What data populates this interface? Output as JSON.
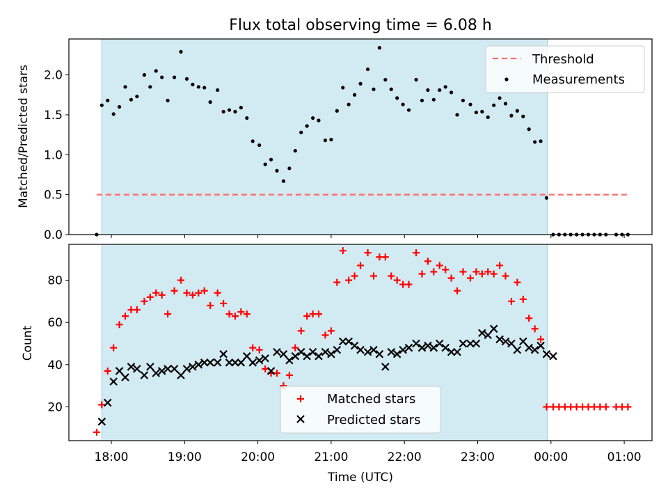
{
  "chart_data": [
    {
      "type": "scatter",
      "title": "Flux total observing time = 6.08 h",
      "xlabel": "",
      "ylabel": "Matched/Predicted stars",
      "xlim": [
        -0.3,
        7.4
      ],
      "ylim": [
        0.0,
        2.45
      ],
      "yticks": [
        0.0,
        0.5,
        1.0,
        1.5,
        2.0
      ],
      "ytick_labels": [
        "0.0",
        "0.5",
        "1.0",
        "1.5",
        "2.0"
      ],
      "xticks": [
        0,
        1,
        2,
        3,
        4,
        5,
        6,
        7
      ],
      "shaded_span": [
        -0.13,
        5.95
      ],
      "shade_color": "#add8e6",
      "legend": {
        "position": "top-right",
        "entries": [
          "Threshold",
          "Measurements"
        ]
      },
      "threshold": {
        "name": "Threshold",
        "y": 0.5,
        "x_range": [
          -0.2,
          7.05
        ],
        "color": "#ff6b6b"
      },
      "series": [
        {
          "name": "Measurements",
          "color": "#000000",
          "x": [
            -0.2,
            -0.13,
            -0.05,
            0.03,
            0.11,
            0.19,
            0.27,
            0.35,
            0.45,
            0.53,
            0.61,
            0.69,
            0.77,
            0.86,
            0.95,
            1.03,
            1.11,
            1.19,
            1.27,
            1.35,
            1.45,
            1.53,
            1.61,
            1.69,
            1.77,
            1.85,
            1.93,
            2.02,
            2.1,
            2.18,
            2.26,
            2.35,
            2.43,
            2.51,
            2.59,
            2.67,
            2.75,
            2.83,
            2.92,
            3.0,
            3.08,
            3.16,
            3.24,
            3.32,
            3.4,
            3.5,
            3.58,
            3.66,
            3.74,
            3.82,
            3.9,
            3.98,
            4.06,
            4.16,
            4.24,
            4.32,
            4.4,
            4.48,
            4.56,
            4.64,
            4.72,
            4.8,
            4.9,
            4.98,
            5.06,
            5.14,
            5.22,
            5.3,
            5.38,
            5.46,
            5.54,
            5.62,
            5.7,
            5.78,
            5.86,
            5.94,
            6.03,
            6.11,
            6.19,
            6.27,
            6.35,
            6.43,
            6.51,
            6.59,
            6.67,
            6.75,
            6.89,
            6.97,
            7.05
          ],
          "y": [
            0.0,
            1.62,
            1.68,
            1.51,
            1.6,
            1.85,
            1.69,
            1.73,
            2.0,
            1.85,
            2.05,
            1.97,
            1.68,
            1.97,
            2.29,
            1.95,
            1.88,
            1.85,
            1.84,
            1.66,
            1.81,
            1.54,
            1.56,
            1.54,
            1.59,
            1.46,
            1.17,
            1.12,
            0.88,
            0.94,
            0.8,
            0.67,
            0.83,
            1.05,
            1.28,
            1.36,
            1.46,
            1.43,
            1.18,
            1.19,
            1.55,
            1.84,
            1.63,
            1.75,
            1.89,
            2.07,
            1.82,
            2.34,
            1.94,
            1.82,
            1.71,
            1.63,
            1.56,
            1.94,
            1.68,
            1.81,
            1.69,
            1.81,
            1.85,
            1.78,
            1.5,
            1.68,
            1.63,
            1.53,
            1.54,
            1.47,
            1.62,
            1.71,
            1.64,
            1.49,
            1.55,
            1.48,
            1.32,
            1.16,
            1.17,
            0.46,
            0.0,
            0.0,
            0.0,
            0.0,
            0.0,
            0.0,
            0.0,
            0.0,
            0.0,
            0.0,
            0.0,
            0.0,
            0.0
          ]
        }
      ]
    },
    {
      "type": "scatter",
      "title": "",
      "xlabel": "Time (UTC)",
      "ylabel": "Count",
      "xlim": [
        -0.6,
        7.4
      ],
      "ylim": [
        4,
        97
      ],
      "yticks": [
        20,
        40,
        60,
        80
      ],
      "ytick_labels": [
        "20",
        "40",
        "60",
        "80"
      ],
      "xticks": [
        0,
        1,
        2,
        3,
        4,
        5,
        6,
        7
      ],
      "xtick_labels": [
        "18:00",
        "19:00",
        "20:00",
        "21:00",
        "22:00",
        "23:00",
        "00:00",
        "01:00"
      ],
      "shaded_span": [
        -0.13,
        5.95
      ],
      "shade_color": "#add8e6",
      "legend": {
        "position": "bottom-center",
        "entries": [
          "Matched stars",
          "Predicted stars"
        ]
      },
      "series": [
        {
          "name": "Matched stars",
          "color": "#ff0000",
          "x": [
            -0.2,
            -0.13,
            -0.05,
            0.03,
            0.11,
            0.19,
            0.27,
            0.35,
            0.45,
            0.53,
            0.61,
            0.69,
            0.77,
            0.86,
            0.95,
            1.03,
            1.11,
            1.19,
            1.27,
            1.35,
            1.45,
            1.53,
            1.61,
            1.69,
            1.77,
            1.85,
            1.93,
            2.02,
            2.1,
            2.18,
            2.26,
            2.35,
            2.43,
            2.51,
            2.59,
            2.67,
            2.75,
            2.83,
            2.92,
            3.0,
            3.08,
            3.16,
            3.24,
            3.32,
            3.4,
            3.5,
            3.58,
            3.66,
            3.74,
            3.82,
            3.9,
            3.98,
            4.06,
            4.16,
            4.24,
            4.32,
            4.4,
            4.48,
            4.56,
            4.64,
            4.72,
            4.8,
            4.9,
            4.98,
            5.06,
            5.14,
            5.22,
            5.3,
            5.38,
            5.46,
            5.54,
            5.62,
            5.7,
            5.78,
            5.86,
            5.94,
            6.03,
            6.11,
            6.19,
            6.27,
            6.35,
            6.43,
            6.51,
            6.59,
            6.67,
            6.75,
            6.89,
            6.97,
            7.05
          ],
          "y": [
            8,
            21,
            37,
            48,
            59,
            63,
            66,
            66,
            70,
            72,
            74,
            73,
            64,
            75,
            80,
            74,
            73,
            74,
            75,
            68,
            74,
            69,
            64,
            63,
            65,
            64,
            48,
            47,
            38,
            36,
            36,
            30,
            35,
            48,
            56,
            63,
            64,
            64,
            54,
            56,
            79,
            94,
            80,
            82,
            87,
            93,
            82,
            91,
            91,
            82,
            80,
            78,
            78,
            93,
            83,
            89,
            84,
            87,
            85,
            81,
            75,
            84,
            81,
            84,
            83,
            84,
            83,
            87,
            82,
            70,
            79,
            71,
            62,
            57,
            52,
            20,
            20,
            20,
            20,
            20,
            20,
            20,
            20,
            20,
            20,
            20,
            20,
            20,
            20
          ]
        },
        {
          "name": "Predicted stars",
          "color": "#000000",
          "x": [
            -0.13,
            -0.05,
            0.03,
            0.11,
            0.19,
            0.27,
            0.35,
            0.45,
            0.53,
            0.61,
            0.69,
            0.77,
            0.86,
            0.95,
            1.03,
            1.11,
            1.19,
            1.27,
            1.35,
            1.45,
            1.53,
            1.61,
            1.69,
            1.77,
            1.85,
            1.93,
            2.02,
            2.1,
            2.18,
            2.26,
            2.35,
            2.43,
            2.51,
            2.59,
            2.67,
            2.75,
            2.83,
            2.92,
            3.0,
            3.08,
            3.16,
            3.24,
            3.32,
            3.4,
            3.5,
            3.58,
            3.66,
            3.74,
            3.82,
            3.9,
            3.98,
            4.06,
            4.16,
            4.24,
            4.32,
            4.4,
            4.48,
            4.56,
            4.64,
            4.72,
            4.8,
            4.9,
            4.98,
            5.06,
            5.14,
            5.22,
            5.3,
            5.38,
            5.46,
            5.54,
            5.62,
            5.7,
            5.78,
            5.86,
            5.94,
            6.03
          ],
          "y": [
            13,
            22,
            32,
            37,
            34,
            39,
            38,
            35,
            39,
            36,
            37,
            38,
            38,
            35,
            38,
            39,
            40,
            41,
            41,
            41,
            45,
            41,
            41,
            41,
            44,
            41,
            42,
            43,
            37,
            46,
            45,
            42,
            44,
            46,
            44,
            46,
            44,
            46,
            45,
            47,
            51,
            51,
            49,
            47,
            46,
            47,
            45,
            39,
            46,
            45,
            47,
            48,
            50,
            48,
            49,
            48,
            50,
            48,
            46,
            46,
            50,
            50,
            50,
            55,
            54,
            57,
            52,
            51,
            50,
            47,
            51,
            48,
            47,
            49,
            45,
            44
          ]
        }
      ]
    }
  ]
}
